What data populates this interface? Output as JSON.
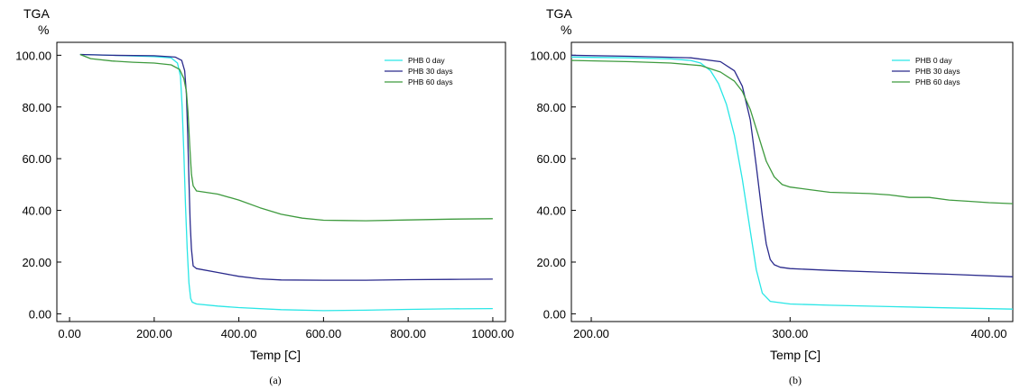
{
  "chart_data": [
    {
      "type": "line",
      "caption": "(a)",
      "ylabel_top": "TGA",
      "ylabel_unit": "%",
      "xlabel": "Temp  [C]",
      "xlim": [
        -30,
        1030
      ],
      "ylim": [
        -3,
        105
      ],
      "xticks": [
        0,
        200,
        400,
        600,
        800,
        1000
      ],
      "xtick_labels": [
        "0.00",
        "200.00",
        "400.00",
        "600.00",
        "800.00",
        "1000.00"
      ],
      "yticks": [
        0,
        20,
        40,
        60,
        80,
        100
      ],
      "ytick_labels": [
        "0.00",
        "20.00",
        "40.00",
        "60.00",
        "80.00",
        "100.00"
      ],
      "legend_position": "top-right",
      "series": [
        {
          "name": "PHB 0 day",
          "color": "#29e6e6",
          "x": [
            25,
            100,
            200,
            240,
            255,
            262,
            266,
            270,
            274,
            278,
            282,
            286,
            290,
            300,
            350,
            400,
            500,
            600,
            700,
            800,
            900,
            1000
          ],
          "y": [
            100.3,
            100,
            99.5,
            99,
            97,
            92,
            80,
            62,
            42,
            25,
            12,
            6,
            4.5,
            3.8,
            3,
            2.4,
            1.6,
            1.2,
            1.4,
            1.7,
            1.9,
            2.0
          ]
        },
        {
          "name": "PHB 30 days",
          "color": "#2a2a8c",
          "x": [
            25,
            100,
            200,
            250,
            265,
            272,
            276,
            279,
            282,
            285,
            288,
            292,
            300,
            350,
            400,
            450,
            500,
            600,
            700,
            800,
            900,
            1000
          ],
          "y": [
            100.3,
            100,
            99.8,
            99.3,
            98,
            94,
            85,
            70,
            52,
            35,
            25,
            18.5,
            17.5,
            16,
            14.5,
            13.5,
            13.1,
            13,
            13,
            13.2,
            13.3,
            13.4
          ]
        },
        {
          "name": "PHB 60 days",
          "color": "#3e9a3e",
          "x": [
            25,
            50,
            100,
            150,
            200,
            240,
            260,
            270,
            276,
            280,
            284,
            288,
            292,
            300,
            350,
            400,
            450,
            500,
            550,
            600,
            700,
            800,
            900,
            1000
          ],
          "y": [
            100.3,
            98.7,
            97.8,
            97.3,
            97,
            96.3,
            94.5,
            91,
            86,
            78,
            65,
            54,
            49.5,
            47.5,
            46.3,
            44,
            41,
            38.5,
            37,
            36.2,
            36,
            36.3,
            36.6,
            36.8
          ]
        }
      ]
    },
    {
      "type": "line",
      "caption": "(b)",
      "ylabel_top": "TGA",
      "ylabel_unit": "%",
      "xlabel": "Temp  [C]",
      "xlim": [
        190,
        412
      ],
      "ylim": [
        -3,
        105
      ],
      "xticks": [
        200,
        300,
        400
      ],
      "xtick_labels": [
        "200.00",
        "300.00",
        "400.00"
      ],
      "yticks": [
        0,
        20,
        40,
        60,
        80,
        100
      ],
      "ytick_labels": [
        "0.00",
        "20.00",
        "40.00",
        "60.00",
        "80.00",
        "100.00"
      ],
      "legend_position": "top-right",
      "series": [
        {
          "name": "PHB 0 day",
          "color": "#29e6e6",
          "x": [
            190,
            220,
            240,
            250,
            255,
            260,
            264,
            268,
            272,
            276,
            280,
            283,
            286,
            290,
            300,
            320,
            350,
            380,
            412
          ],
          "y": [
            99.3,
            99,
            98.6,
            98,
            97,
            94,
            89,
            81,
            69,
            52,
            32,
            17,
            8,
            4.8,
            3.8,
            3.3,
            2.8,
            2.3,
            1.8
          ]
        },
        {
          "name": "PHB 30 days",
          "color": "#2a2a8c",
          "x": [
            190,
            220,
            250,
            265,
            272,
            276,
            280,
            283,
            286,
            288,
            290,
            292,
            295,
            300,
            320,
            350,
            380,
            412
          ],
          "y": [
            100,
            99.6,
            99,
            97.5,
            94,
            88,
            75,
            57,
            38,
            27,
            21,
            19,
            18,
            17.5,
            16.8,
            16,
            15.3,
            14.3
          ]
        },
        {
          "name": "PHB 60 days",
          "color": "#3e9a3e",
          "x": [
            190,
            220,
            240,
            255,
            265,
            272,
            276,
            280,
            284,
            288,
            292,
            296,
            300,
            310,
            320,
            340,
            350,
            360,
            370,
            380,
            390,
            400,
            412
          ],
          "y": [
            98,
            97.5,
            97,
            96,
            93.5,
            90,
            86,
            79,
            69,
            59,
            53,
            50,
            49,
            48,
            47,
            46.5,
            46,
            45,
            45,
            44,
            43.5,
            43,
            42.6
          ]
        }
      ]
    }
  ]
}
